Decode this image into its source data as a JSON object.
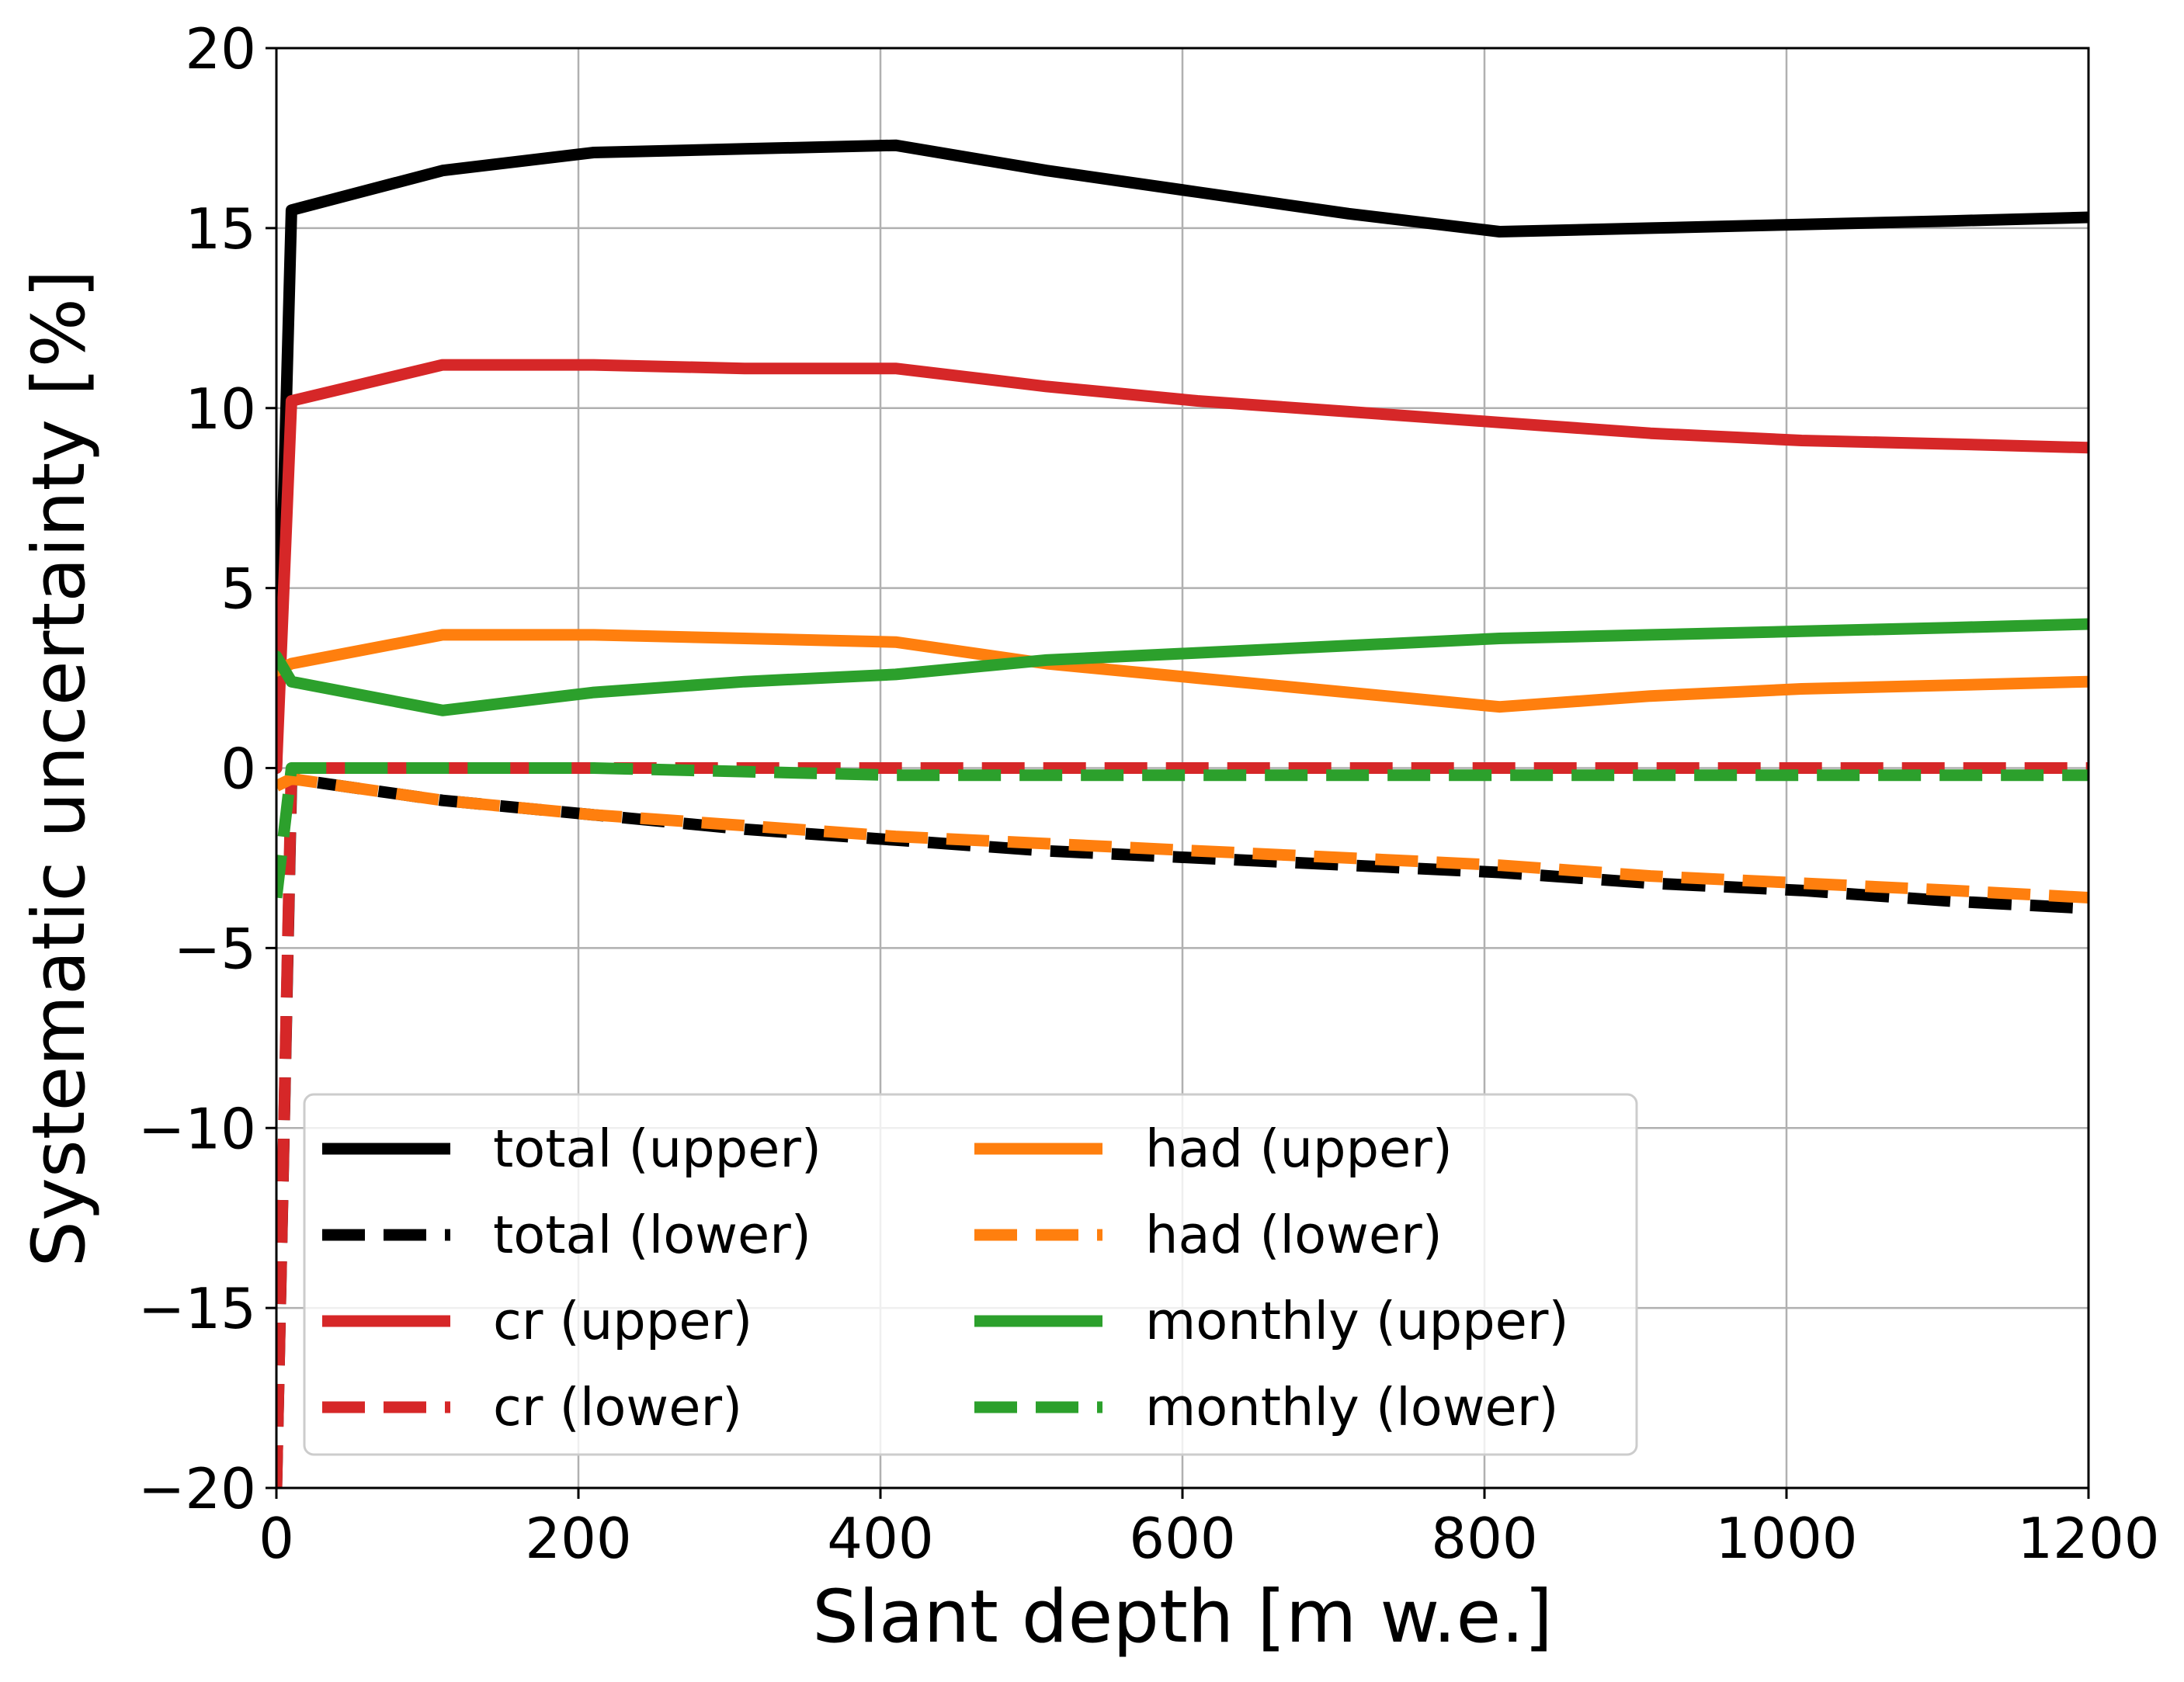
{
  "chart_data": {
    "type": "line",
    "title": "",
    "xlabel": "Slant depth [m w.e.]",
    "ylabel": "Systematic uncertainty [%]",
    "xlim": [
      0,
      1200
    ],
    "ylim": [
      -20,
      20
    ],
    "xticks": [
      0,
      200,
      400,
      600,
      800,
      1000,
      1200
    ],
    "yticks": [
      -20,
      -15,
      -10,
      -5,
      0,
      5,
      10,
      15,
      20
    ],
    "xtick_labels": [
      "0",
      "200",
      "400",
      "600",
      "800",
      "1000",
      "1200"
    ],
    "ytick_labels": [
      "−20",
      "−15",
      "−10",
      "−5",
      "0",
      "5",
      "10",
      "15",
      "20"
    ],
    "grid": true,
    "legend_position": "lower-left",
    "legend_columns": 2,
    "series": [
      {
        "name": "total (upper)",
        "color": "#000000",
        "style": "solid",
        "x": [
          0,
          10,
          110,
          210,
          310,
          410,
          510,
          610,
          710,
          810,
          910,
          1010,
          1110,
          1200
        ],
        "y": [
          0.0,
          15.5,
          16.6,
          17.1,
          17.2,
          17.3,
          16.6,
          16.0,
          15.4,
          14.9,
          15.0,
          15.1,
          15.2,
          15.3
        ]
      },
      {
        "name": "total (lower)",
        "color": "#000000",
        "style": "dashed",
        "x": [
          0,
          10,
          110,
          210,
          310,
          410,
          510,
          610,
          710,
          810,
          910,
          1010,
          1110,
          1200
        ],
        "y": [
          -20.0,
          -0.3,
          -0.9,
          -1.3,
          -1.7,
          -2.0,
          -2.3,
          -2.5,
          -2.7,
          -2.9,
          -3.2,
          -3.4,
          -3.7,
          -3.9
        ]
      },
      {
        "name": "cr (upper)",
        "color": "#d62728",
        "style": "solid",
        "x": [
          0,
          10,
          110,
          210,
          310,
          410,
          510,
          610,
          710,
          810,
          910,
          1010,
          1110,
          1200
        ],
        "y": [
          0.0,
          10.2,
          11.2,
          11.2,
          11.1,
          11.1,
          10.6,
          10.2,
          9.9,
          9.6,
          9.3,
          9.1,
          9.0,
          8.9
        ]
      },
      {
        "name": "cr (lower)",
        "color": "#d62728",
        "style": "dashed",
        "x": [
          0,
          10,
          110,
          210,
          310,
          410,
          510,
          610,
          710,
          810,
          910,
          1010,
          1110,
          1200
        ],
        "y": [
          -20.0,
          0.0,
          0.0,
          0.0,
          0.0,
          0.0,
          0.0,
          0.0,
          0.0,
          0.0,
          0.0,
          0.0,
          0.0,
          0.0
        ]
      },
      {
        "name": "had (upper)",
        "color": "#ff7f0e",
        "style": "solid",
        "x": [
          0,
          10,
          110,
          210,
          310,
          410,
          510,
          610,
          710,
          810,
          910,
          1010,
          1110,
          1200
        ],
        "y": [
          2.7,
          2.9,
          3.7,
          3.7,
          3.6,
          3.5,
          2.9,
          2.5,
          2.1,
          1.7,
          2.0,
          2.2,
          2.3,
          2.4
        ]
      },
      {
        "name": "had (lower)",
        "color": "#ff7f0e",
        "style": "dashed",
        "x": [
          0,
          10,
          110,
          210,
          310,
          410,
          510,
          610,
          710,
          810,
          910,
          1010,
          1110,
          1200
        ],
        "y": [
          -0.5,
          -0.3,
          -0.9,
          -1.3,
          -1.6,
          -1.9,
          -2.1,
          -2.3,
          -2.5,
          -2.7,
          -3.0,
          -3.2,
          -3.4,
          -3.6
        ]
      },
      {
        "name": "monthly (upper)",
        "color": "#2ca02c",
        "style": "solid",
        "x": [
          0,
          10,
          110,
          210,
          310,
          410,
          510,
          610,
          710,
          810,
          910,
          1010,
          1110,
          1200
        ],
        "y": [
          3.1,
          2.4,
          1.6,
          2.1,
          2.4,
          2.6,
          3.0,
          3.2,
          3.4,
          3.6,
          3.7,
          3.8,
          3.9,
          4.0
        ]
      },
      {
        "name": "monthly (lower)",
        "color": "#2ca02c",
        "style": "dashed",
        "x": [
          0,
          10,
          110,
          210,
          310,
          410,
          510,
          610,
          710,
          810,
          910,
          1010,
          1110,
          1200
        ],
        "y": [
          -3.6,
          0.0,
          0.0,
          0.0,
          -0.1,
          -0.2,
          -0.2,
          -0.2,
          -0.2,
          -0.2,
          -0.2,
          -0.2,
          -0.2,
          -0.2
        ]
      }
    ]
  }
}
